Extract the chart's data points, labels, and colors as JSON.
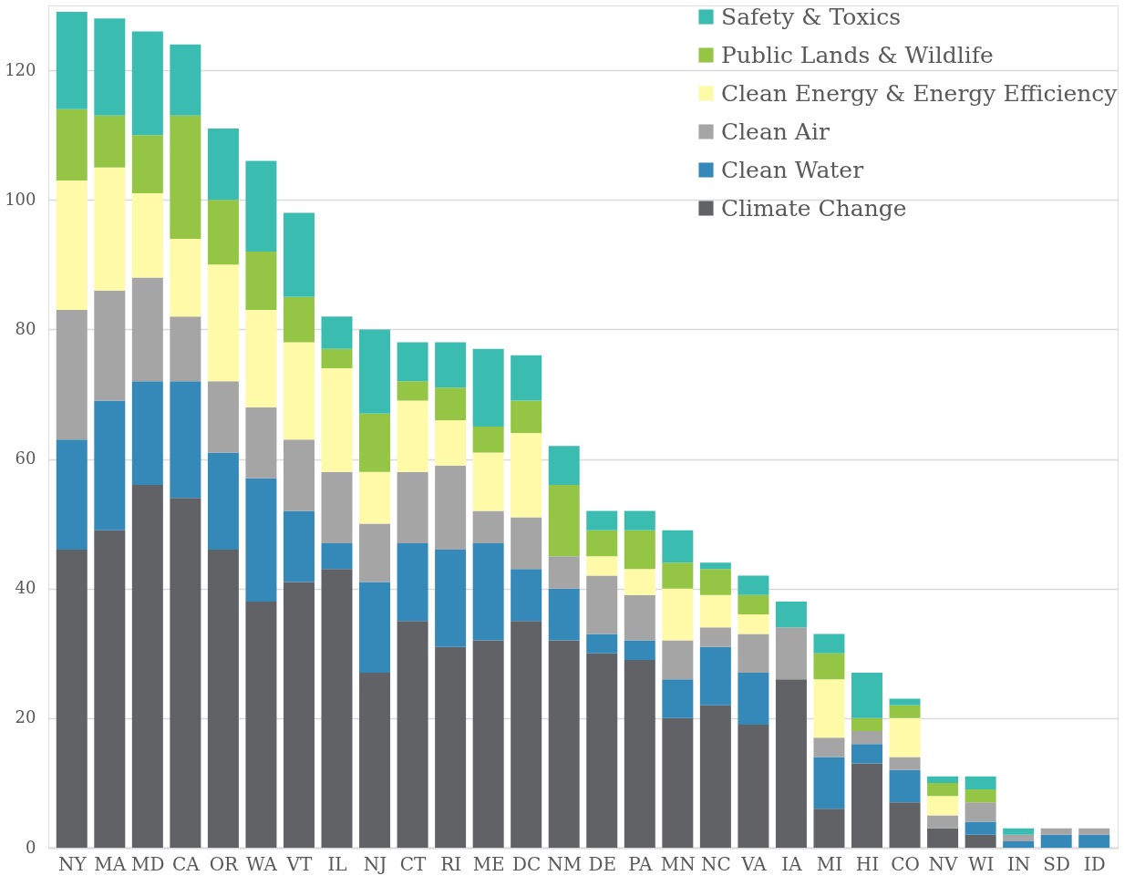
{
  "chart_data": {
    "type": "bar",
    "stacked": true,
    "categories": [
      "NY",
      "MA",
      "MD",
      "CA",
      "OR",
      "WA",
      "VT",
      "IL",
      "NJ",
      "CT",
      "RI",
      "ME",
      "DC",
      "NM",
      "DE",
      "PA",
      "MN",
      "NC",
      "VA",
      "IA",
      "MI",
      "HI",
      "CO",
      "NV",
      "WI",
      "IN",
      "SD",
      "ID"
    ],
    "series": [
      {
        "name": "Climate Change",
        "color": "#616266",
        "values": [
          46,
          49,
          56,
          54,
          46,
          38,
          41,
          43,
          27,
          35,
          31,
          32,
          35,
          32,
          30,
          29,
          20,
          22,
          19,
          26,
          6,
          13,
          7,
          3,
          2,
          0,
          0,
          0
        ]
      },
      {
        "name": "Clean Water",
        "color": "#3589b9",
        "values": [
          17,
          20,
          16,
          18,
          15,
          19,
          11,
          4,
          14,
          12,
          15,
          15,
          8,
          8,
          3,
          3,
          6,
          9,
          8,
          0,
          8,
          3,
          5,
          0,
          2,
          1,
          2,
          2
        ]
      },
      {
        "name": "Clean Air",
        "color": "#a5a5a5",
        "values": [
          20,
          17,
          16,
          10,
          11,
          11,
          11,
          11,
          9,
          11,
          13,
          5,
          8,
          5,
          9,
          7,
          6,
          3,
          6,
          8,
          3,
          2,
          2,
          2,
          3,
          1,
          1,
          1
        ]
      },
      {
        "name": "Clean Energy & Energy Efficiency",
        "color": "#fffaa8",
        "values": [
          20,
          19,
          13,
          12,
          18,
          15,
          15,
          16,
          8,
          11,
          7,
          9,
          13,
          0,
          3,
          4,
          8,
          5,
          3,
          0,
          9,
          0,
          6,
          3,
          0,
          0,
          0,
          0
        ]
      },
      {
        "name": "Public Lands & Wildlife",
        "color": "#95c544",
        "values": [
          11,
          8,
          9,
          19,
          10,
          9,
          7,
          3,
          9,
          3,
          5,
          4,
          5,
          11,
          4,
          6,
          4,
          4,
          3,
          0,
          4,
          2,
          2,
          2,
          2,
          0,
          0,
          0
        ]
      },
      {
        "name": "Safety & Toxics",
        "color": "#3bbcb0",
        "values": [
          15,
          15,
          16,
          11,
          11,
          14,
          13,
          5,
          13,
          6,
          7,
          12,
          7,
          6,
          3,
          3,
          5,
          1,
          3,
          4,
          3,
          7,
          1,
          1,
          2,
          1,
          0,
          0
        ]
      }
    ],
    "ylim": [
      0,
      130
    ],
    "yticks": [
      0,
      20,
      40,
      60,
      80,
      100,
      120
    ],
    "grid": "y",
    "legend": "top right"
  }
}
